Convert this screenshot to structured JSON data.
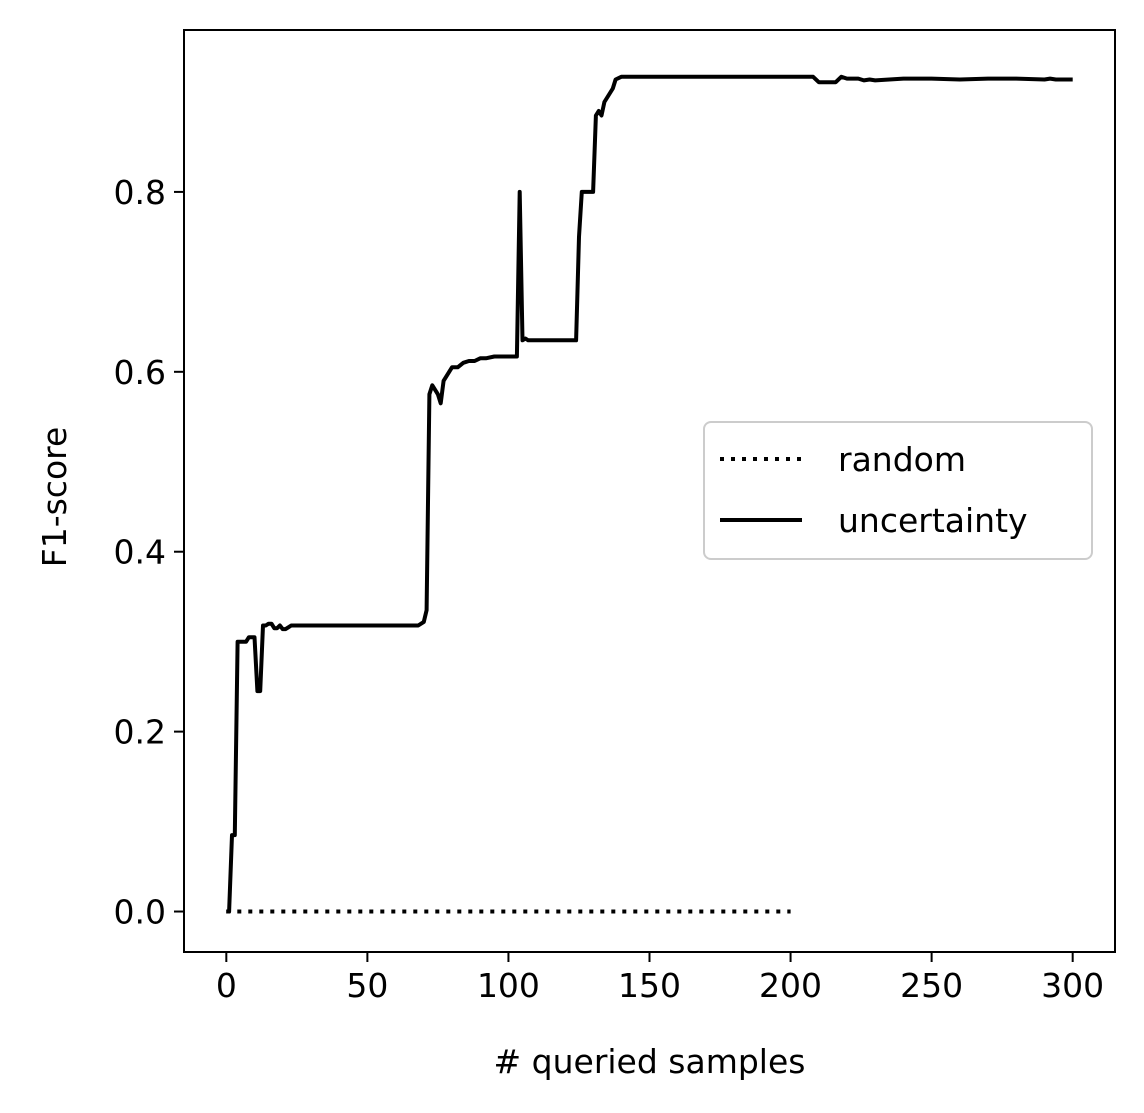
{
  "chart_data": {
    "type": "line",
    "title": "",
    "xlabel": "# queried samples",
    "ylabel": "F1-score",
    "xlim": [
      -15,
      315
    ],
    "ylim": [
      -0.045,
      0.98
    ],
    "xticks": [
      0,
      50,
      100,
      150,
      200,
      250,
      300
    ],
    "xtick_labels": [
      "0",
      "50",
      "100",
      "150",
      "200",
      "250",
      "300"
    ],
    "yticks": [
      0.0,
      0.2,
      0.4,
      0.6,
      0.8
    ],
    "ytick_labels": [
      "0.0",
      "0.2",
      "0.4",
      "0.6",
      "0.8"
    ],
    "grid": false,
    "legend": "center-right",
    "series": [
      {
        "name": "random",
        "style": "dotted",
        "color": "#000000",
        "x": [
          0,
          200
        ],
        "y": [
          0.0,
          0.0
        ]
      },
      {
        "name": "uncertainty",
        "style": "solid",
        "color": "#000000",
        "x": [
          0,
          1,
          2,
          3,
          4,
          5,
          6,
          7,
          8,
          9,
          10,
          11,
          12,
          13,
          14,
          15,
          16,
          17,
          18,
          19,
          20,
          21,
          22,
          23,
          25,
          30,
          40,
          50,
          60,
          68,
          70,
          71,
          72,
          73,
          74,
          75,
          76,
          77,
          78,
          79,
          80,
          82,
          84,
          86,
          88,
          90,
          92,
          95,
          98,
          100,
          103,
          104,
          105,
          106,
          107,
          108,
          110,
          115,
          120,
          124,
          125,
          126,
          127,
          130,
          131,
          132,
          133,
          134,
          135,
          137,
          138,
          140,
          150,
          170,
          190,
          200,
          208,
          210,
          212,
          216,
          218,
          220,
          222,
          224,
          226,
          228,
          230,
          235,
          240,
          250,
          260,
          270,
          280,
          290,
          292,
          294,
          300
        ],
        "y": [
          0.0,
          0.0,
          0.085,
          0.085,
          0.3,
          0.3,
          0.3,
          0.3,
          0.305,
          0.305,
          0.305,
          0.245,
          0.245,
          0.318,
          0.318,
          0.32,
          0.32,
          0.315,
          0.315,
          0.318,
          0.314,
          0.314,
          0.316,
          0.318,
          0.318,
          0.318,
          0.318,
          0.318,
          0.318,
          0.318,
          0.322,
          0.335,
          0.575,
          0.585,
          0.58,
          0.575,
          0.565,
          0.59,
          0.595,
          0.6,
          0.605,
          0.605,
          0.61,
          0.612,
          0.612,
          0.615,
          0.615,
          0.617,
          0.617,
          0.617,
          0.617,
          0.8,
          0.635,
          0.637,
          0.635,
          0.635,
          0.635,
          0.635,
          0.635,
          0.635,
          0.75,
          0.8,
          0.8,
          0.8,
          0.885,
          0.89,
          0.885,
          0.9,
          0.905,
          0.915,
          0.925,
          0.928,
          0.928,
          0.928,
          0.928,
          0.928,
          0.928,
          0.922,
          0.922,
          0.922,
          0.928,
          0.926,
          0.926,
          0.926,
          0.924,
          0.925,
          0.924,
          0.925,
          0.926,
          0.926,
          0.925,
          0.926,
          0.926,
          0.925,
          0.926,
          0.925,
          0.925
        ]
      }
    ]
  }
}
